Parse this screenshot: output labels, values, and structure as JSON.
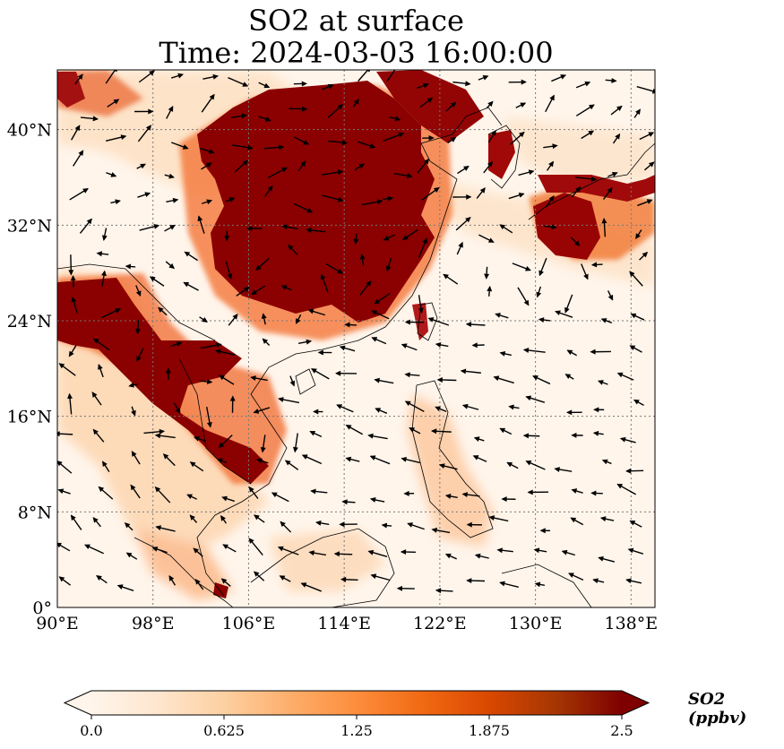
{
  "title": {
    "line1": "SO2 at surface",
    "line2": "Time: 2024-03-03 16:00:00"
  },
  "map": {
    "extent": {
      "lon_min": 90,
      "lon_max": 140,
      "lat_min": 0,
      "lat_max": 45
    },
    "lon_ticks": [
      {
        "value": 90,
        "label": "90°E"
      },
      {
        "value": 98,
        "label": "98°E"
      },
      {
        "value": 106,
        "label": "106°E"
      },
      {
        "value": 114,
        "label": "114°E"
      },
      {
        "value": 122,
        "label": "122°E"
      },
      {
        "value": 130,
        "label": "130°E"
      },
      {
        "value": 138,
        "label": "138°E"
      }
    ],
    "lat_ticks": [
      {
        "value": 0,
        "label": "0°"
      },
      {
        "value": 8,
        "label": "8°N"
      },
      {
        "value": 16,
        "label": "16°N"
      },
      {
        "value": 24,
        "label": "24°N"
      },
      {
        "value": 32,
        "label": "32°N"
      },
      {
        "value": 40,
        "label": "40°N"
      }
    ],
    "gridlines": true,
    "wind_vectors": true
  },
  "colorbar": {
    "label": "SO2 (ppbv)",
    "ticks": [
      "0.0",
      "0.625",
      "1.25",
      "1.875",
      "2.5"
    ],
    "min": 0.0,
    "max": 2.5,
    "extend": "both",
    "colormap": [
      "#fff5eb",
      "#fee6ce",
      "#fdd0a2",
      "#fdae6b",
      "#fd8d3c",
      "#f16913",
      "#d94801",
      "#a63603",
      "#7f0000"
    ]
  },
  "colors": {
    "background_low": "#fff5eb",
    "high": "#7f0000"
  }
}
